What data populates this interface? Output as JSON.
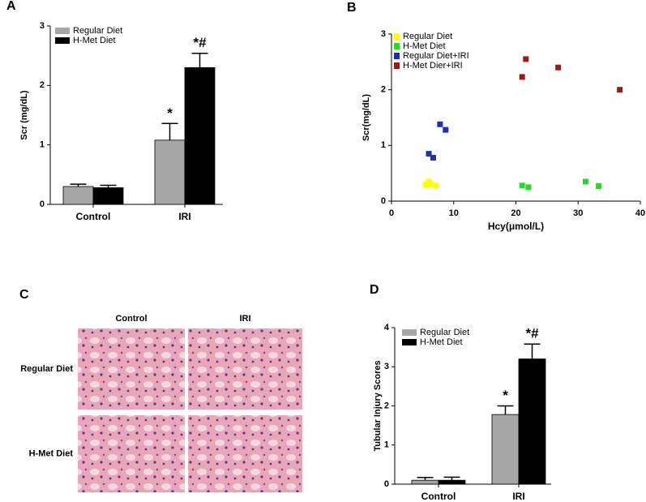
{
  "chart_data": [
    {
      "type": "bar",
      "panel": "A",
      "ylabel": "Scr  (mg/dL)",
      "categories": [
        "Control",
        "IRI"
      ],
      "series": [
        {
          "name": "Regular Diet",
          "color": "#a6a6a6",
          "values": [
            0.3,
            1.08
          ],
          "errors": [
            0.04,
            0.28
          ],
          "annotations": [
            null,
            "*"
          ]
        },
        {
          "name": "H-Met Diet",
          "color": "#000000",
          "values": [
            0.28,
            2.3
          ],
          "errors": [
            0.04,
            0.24
          ],
          "annotations": [
            null,
            "*#"
          ]
        }
      ],
      "ylim": [
        0,
        3
      ],
      "yticks": [
        0,
        1,
        2,
        3
      ]
    },
    {
      "type": "scatter",
      "panel": "B",
      "xlabel": "Hcy(μmol/L)",
      "ylabel": "Scr(mg/dL)",
      "series": [
        {
          "name": "Regular Diet",
          "color": "#ffff00",
          "x": [
            5.5,
            5.8,
            6.0,
            6.3,
            7.2
          ],
          "values": [
            0.3,
            0.3,
            0.35,
            0.3,
            0.28
          ]
        },
        {
          "name": "H-Met Diet",
          "color": "#22dd22",
          "x": [
            21.0,
            22.0,
            31.2,
            33.3
          ],
          "values": [
            0.28,
            0.25,
            0.35,
            0.27
          ]
        },
        {
          "name": "Regular Diet+IRI",
          "color": "#1f2fb0",
          "x": [
            6.0,
            6.7,
            7.8,
            8.7
          ],
          "values": [
            0.85,
            0.78,
            1.38,
            1.28
          ]
        },
        {
          "name": "H-Met Dier+IRI",
          "color": "#9b1b1b",
          "x": [
            21.0,
            21.6,
            26.8,
            36.7
          ],
          "values": [
            2.23,
            2.55,
            2.4,
            2.0
          ]
        }
      ],
      "xlim": [
        0,
        40
      ],
      "xticks": [
        0,
        10,
        20,
        30,
        40
      ],
      "ylim": [
        0,
        3
      ],
      "yticks": [
        0,
        1,
        2,
        3
      ]
    },
    {
      "type": "image-grid",
      "panel": "C",
      "columns": [
        "Control",
        "IRI"
      ],
      "rows": [
        "Regular Diet",
        "H-Met Diet"
      ]
    },
    {
      "type": "bar",
      "panel": "D",
      "ylabel": "Tubular Injury Scores",
      "categories": [
        "Control",
        "IRI"
      ],
      "series": [
        {
          "name": "Regular Diet",
          "color": "#a6a6a6",
          "values": [
            0.1,
            1.78
          ],
          "errors": [
            0.07,
            0.22
          ],
          "annotations": [
            null,
            "*"
          ]
        },
        {
          "name": "H-Met Diet",
          "color": "#000000",
          "values": [
            0.1,
            3.2
          ],
          "errors": [
            0.08,
            0.38
          ],
          "annotations": [
            null,
            "*#"
          ]
        }
      ],
      "ylim": [
        0,
        4
      ],
      "yticks": [
        0,
        1,
        2,
        3,
        4
      ]
    }
  ]
}
